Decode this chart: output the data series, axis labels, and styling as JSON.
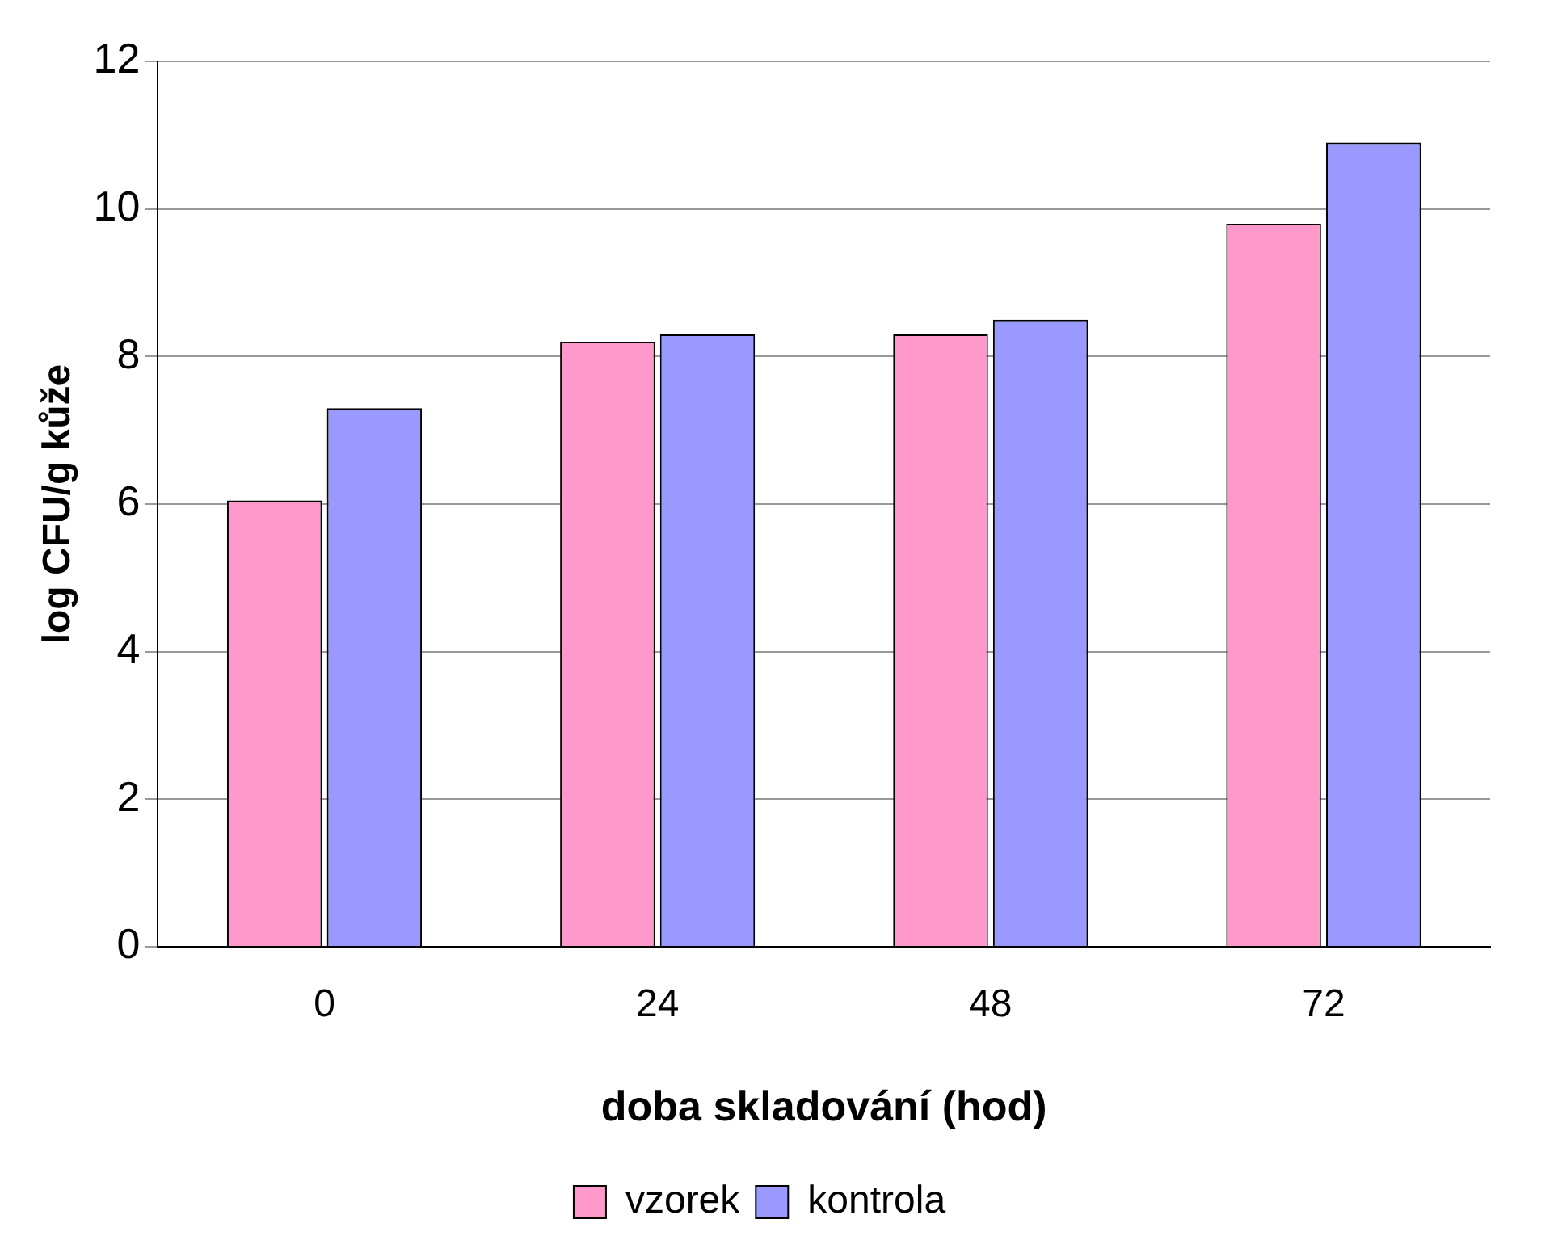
{
  "chart_data": {
    "type": "bar",
    "xlabel": "doba skladování (hod)",
    "ylabel": "log CFU/g kůže",
    "categories": [
      "0",
      "24",
      "48",
      "72"
    ],
    "series": [
      {
        "name": "vzorek",
        "color": "#ff99cc",
        "values": [
          6.05,
          8.2,
          8.3,
          9.8
        ]
      },
      {
        "name": "kontrola",
        "color": "#9999ff",
        "values": [
          7.3,
          8.3,
          8.5,
          10.9
        ]
      }
    ],
    "ylim": [
      0,
      12
    ],
    "yticks": [
      0,
      2,
      4,
      6,
      8,
      10,
      12
    ],
    "grid": "y",
    "legend": "bottom"
  }
}
